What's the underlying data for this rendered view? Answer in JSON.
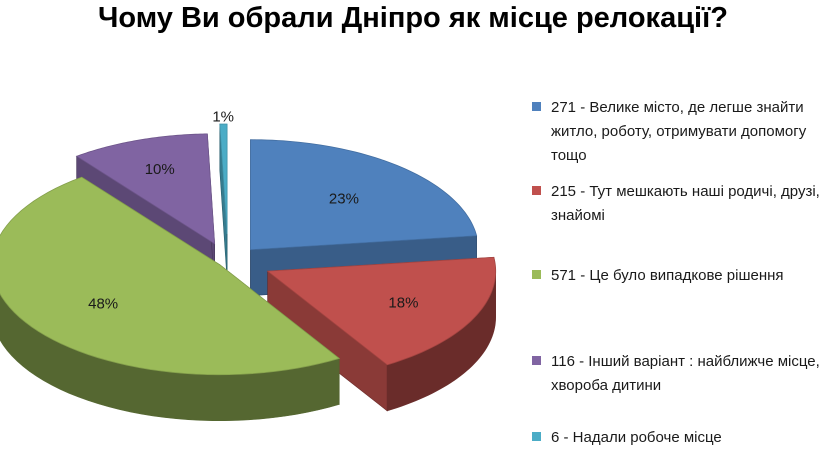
{
  "chart_data": {
    "type": "pie",
    "title": "Чому Ви обрали Дніпро як місце релокації?",
    "slices": [
      {
        "value": 271,
        "percent_label": "23%",
        "legend": "271  -  Велике місто, де легше знайти житло, роботу, отримувати допомогу тощо",
        "color": "#4f81bd"
      },
      {
        "value": 215,
        "percent_label": "18%",
        "legend": "215  - Тут мешкають наші родичі, друзі, знайомі",
        "color": "#c0504d"
      },
      {
        "value": 571,
        "percent_label": "48%",
        "legend": "571  -  Це було випадкове рішення",
        "color": "#9bbb59"
      },
      {
        "value": 116,
        "percent_label": "10%",
        "legend": "116  -  Інший варіант : найближче місце, хвороба дитини",
        "color": "#8064a2"
      },
      {
        "value": 6,
        "percent_label": "1%",
        "legend": "6      -  Надали робоче місце",
        "color": "#4bacc6"
      }
    ],
    "legend_position": "right",
    "style": "3d-exploded"
  }
}
